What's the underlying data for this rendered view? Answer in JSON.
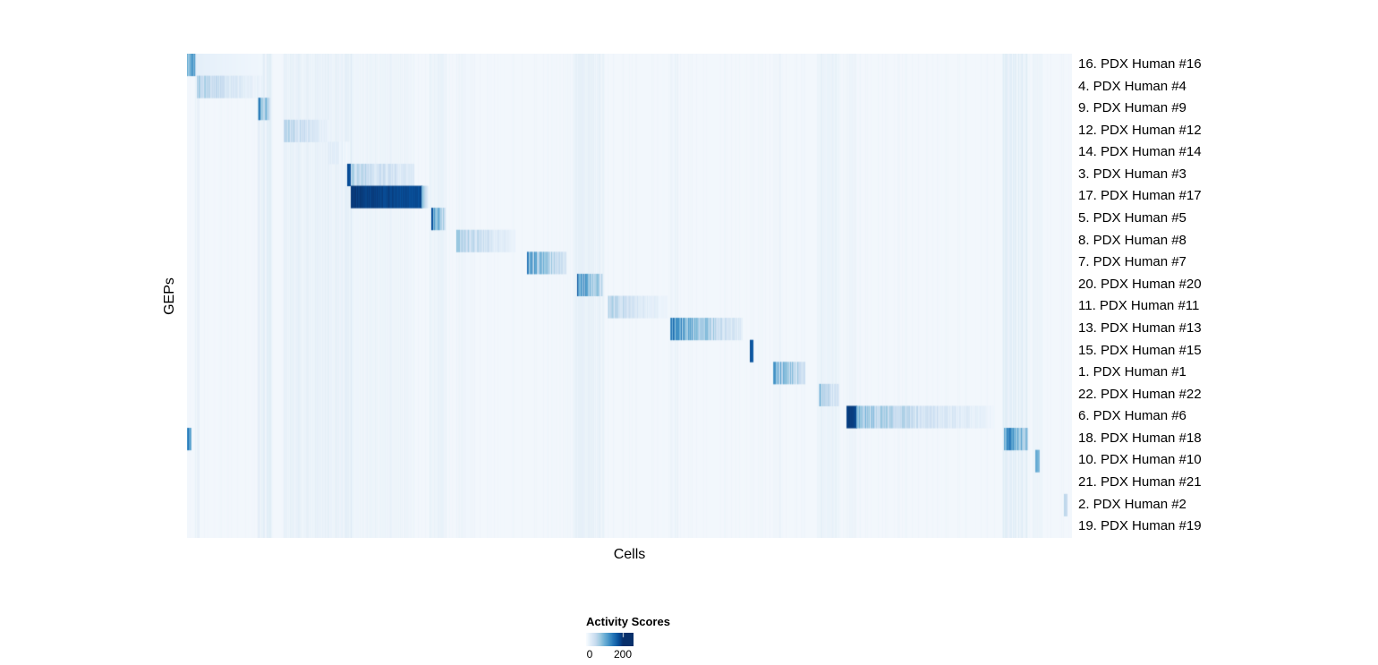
{
  "chart_data": {
    "type": "heatmap",
    "title": "",
    "xlabel": "Cells",
    "ylabel": "GEPs",
    "rows": [
      "16. PDX Human #16",
      "4. PDX Human #4",
      "9. PDX Human #9",
      "12. PDX Human #12",
      "14. PDX Human #14",
      "3. PDX Human #3",
      "17. PDX Human #17",
      "5. PDX Human #5",
      "8. PDX Human #8",
      "7. PDX Human #7",
      "20. PDX Human #20",
      "11. PDX Human #11",
      "13. PDX Human #13",
      "15. PDX Human #15",
      "1. PDX Human #1",
      "22. PDX Human #22",
      "6. PDX Human #6",
      "18. PDX Human #18",
      "10. PDX Human #10",
      "21. PDX Human #21",
      "2. PDX Human #2",
      "19. PDX Human #19"
    ],
    "legend": {
      "title": "Activity Scores",
      "min": 0,
      "max": 200,
      "tick_labels": [
        "0",
        "200"
      ]
    },
    "colors": {
      "background": "#f2f7fc",
      "scale": [
        "#f7fbff",
        "#deebf7",
        "#c6dbef",
        "#9ecae1",
        "#6baed6",
        "#4292c6",
        "#2171b5",
        "#08519c",
        "#08306b"
      ]
    },
    "scale_note": "v0/v1 are colormap fractions of activity score; 1.0 = score >= 200, 0 = score 0. x0/x1 are fractions of the cell axis.",
    "blocks": [
      {
        "row": 0,
        "x0": 0.0,
        "x1": 0.011,
        "v0": 0.95,
        "v1": 0.55,
        "style": "stripes"
      },
      {
        "row": 0,
        "x0": 0.011,
        "x1": 0.084,
        "v0": 0.1,
        "v1": 0.04,
        "style": "fade"
      },
      {
        "row": 1,
        "x0": 0.012,
        "x1": 0.084,
        "v0": 0.42,
        "v1": 0.08,
        "style": "fade-stripes"
      },
      {
        "row": 2,
        "x0": 0.08,
        "x1": 0.094,
        "v0": 0.85,
        "v1": 0.4,
        "style": "fade-stripes"
      },
      {
        "row": 3,
        "x0": 0.11,
        "x1": 0.16,
        "v0": 0.45,
        "v1": 0.08,
        "style": "fade-stripes"
      },
      {
        "row": 4,
        "x0": 0.16,
        "x1": 0.184,
        "v0": 0.18,
        "v1": 0.05,
        "style": "stripes"
      },
      {
        "row": 5,
        "x0": 0.181,
        "x1": 0.186,
        "v0": 0.95,
        "v1": 0.9,
        "style": "solid"
      },
      {
        "row": 5,
        "x0": 0.186,
        "x1": 0.256,
        "v0": 0.4,
        "v1": 0.18,
        "style": "stripes"
      },
      {
        "row": 6,
        "x0": 0.186,
        "x1": 0.265,
        "v0": 1.0,
        "v1": 0.92,
        "style": "solid"
      },
      {
        "row": 6,
        "x0": 0.265,
        "x1": 0.272,
        "v0": 0.5,
        "v1": 0.1,
        "style": "fade"
      },
      {
        "row": 7,
        "x0": 0.277,
        "x1": 0.292,
        "v0": 0.88,
        "v1": 0.3,
        "style": "fade-stripes"
      },
      {
        "row": 8,
        "x0": 0.305,
        "x1": 0.371,
        "v0": 0.5,
        "v1": 0.07,
        "style": "fade-stripes"
      },
      {
        "row": 9,
        "x0": 0.385,
        "x1": 0.428,
        "v0": 0.82,
        "v1": 0.22,
        "style": "fade-stripes"
      },
      {
        "row": 10,
        "x0": 0.441,
        "x1": 0.47,
        "v0": 0.9,
        "v1": 0.32,
        "style": "fade-stripes"
      },
      {
        "row": 11,
        "x0": 0.476,
        "x1": 0.543,
        "v0": 0.42,
        "v1": 0.06,
        "style": "fade-stripes"
      },
      {
        "row": 12,
        "x0": 0.547,
        "x1": 0.627,
        "v0": 0.92,
        "v1": 0.15,
        "style": "fade-stripes"
      },
      {
        "row": 13,
        "x0": 0.636,
        "x1": 0.64,
        "v0": 0.9,
        "v1": 0.85,
        "style": "solid"
      },
      {
        "row": 14,
        "x0": 0.663,
        "x1": 0.698,
        "v0": 0.8,
        "v1": 0.28,
        "style": "fade-stripes"
      },
      {
        "row": 15,
        "x0": 0.714,
        "x1": 0.737,
        "v0": 0.55,
        "v1": 0.18,
        "style": "fade-stripes"
      },
      {
        "row": 16,
        "x0": 0.746,
        "x1": 0.757,
        "v0": 1.0,
        "v1": 0.95,
        "style": "solid"
      },
      {
        "row": 16,
        "x0": 0.757,
        "x1": 0.912,
        "v0": 0.55,
        "v1": 0.06,
        "style": "fade-stripes"
      },
      {
        "row": 17,
        "x0": 0.0,
        "x1": 0.005,
        "v0": 0.85,
        "v1": 0.6,
        "style": "stripes"
      },
      {
        "row": 17,
        "x0": 0.924,
        "x1": 0.95,
        "v0": 0.95,
        "v1": 0.45,
        "style": "fade-stripes"
      },
      {
        "row": 18,
        "x0": 0.959,
        "x1": 0.963,
        "v0": 0.55,
        "v1": 0.45,
        "style": "solid"
      },
      {
        "row": 20,
        "x0": 0.991,
        "x1": 0.994,
        "v0": 0.3,
        "v1": 0.25,
        "style": "solid"
      }
    ],
    "noise_columns": [
      {
        "x": 0.01,
        "w": 0.004,
        "a": 0.1
      },
      {
        "x": 0.08,
        "w": 0.016,
        "a": 0.12
      },
      {
        "x": 0.11,
        "w": 0.076,
        "a": 0.1
      },
      {
        "x": 0.186,
        "w": 0.07,
        "a": 0.05
      },
      {
        "x": 0.275,
        "w": 0.018,
        "a": 0.08
      },
      {
        "x": 0.305,
        "w": 0.02,
        "a": 0.04
      },
      {
        "x": 0.436,
        "w": 0.036,
        "a": 0.09
      },
      {
        "x": 0.547,
        "w": 0.008,
        "a": 0.05
      },
      {
        "x": 0.663,
        "w": 0.01,
        "a": 0.04
      },
      {
        "x": 0.712,
        "w": 0.026,
        "a": 0.07
      },
      {
        "x": 0.746,
        "w": 0.01,
        "a": 0.05
      },
      {
        "x": 0.922,
        "w": 0.028,
        "a": 0.14
      },
      {
        "x": 0.956,
        "w": 0.01,
        "a": 0.05
      }
    ]
  }
}
